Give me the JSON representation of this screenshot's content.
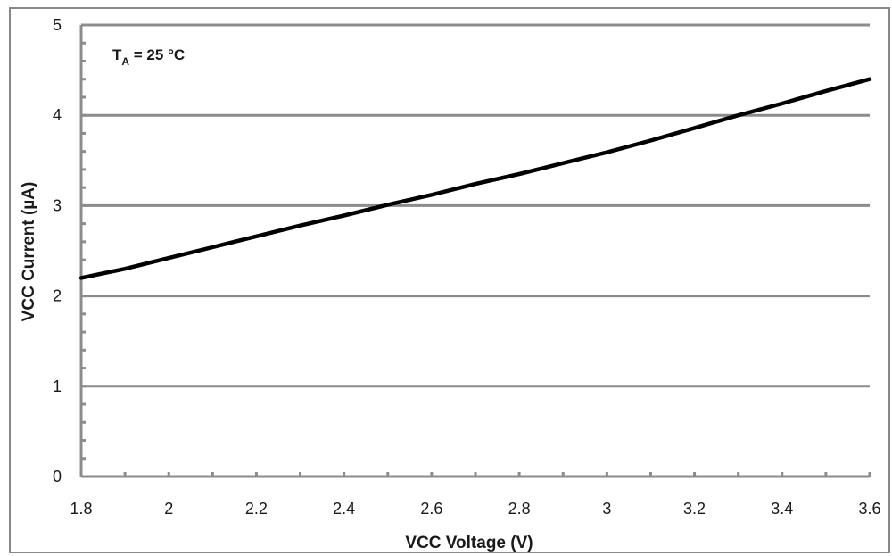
{
  "chart_data": {
    "type": "line",
    "xlabel": "VCC Voltage (V)",
    "ylabel": "VCC Current (µA)",
    "annotation": {
      "main": "T",
      "sub": "A",
      "rest": " = 25 °C"
    },
    "xlim": [
      1.8,
      3.6
    ],
    "ylim": [
      0,
      5
    ],
    "xticks": [
      "1.8",
      "2",
      "2.2",
      "2.4",
      "2.6",
      "2.8",
      "3",
      "3.2",
      "3.4",
      "3.6"
    ],
    "yticks": [
      "0",
      "1",
      "2",
      "3",
      "4",
      "5"
    ],
    "grid": "horizontal",
    "series": [
      {
        "color": "#000000",
        "x": [
          1.8,
          1.9,
          2.0,
          2.1,
          2.2,
          2.3,
          2.4,
          2.5,
          2.6,
          2.7,
          2.8,
          2.9,
          3.0,
          3.1,
          3.2,
          3.3,
          3.4,
          3.5,
          3.6
        ],
        "y": [
          2.2,
          2.3,
          2.42,
          2.54,
          2.66,
          2.78,
          2.89,
          3.01,
          3.12,
          3.24,
          3.35,
          3.47,
          3.59,
          3.72,
          3.86,
          4.0,
          4.13,
          4.27,
          4.4
        ]
      }
    ]
  }
}
